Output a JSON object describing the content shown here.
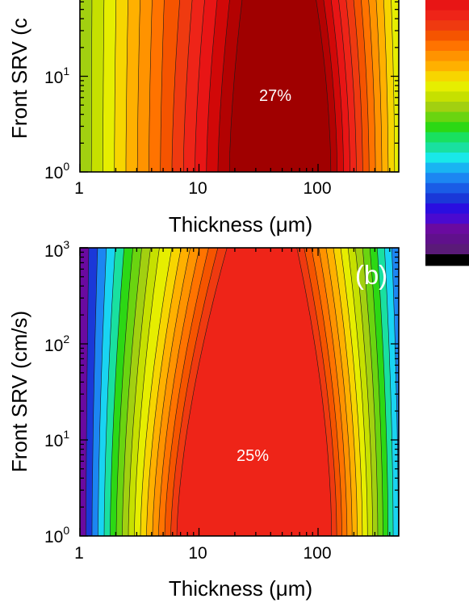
{
  "chart_data": [
    {
      "type": "heatmap",
      "panel_label": "",
      "title": "",
      "xlabel": "Thickness (μm)",
      "ylabel": "Front SRV (c",
      "x_scale": "log",
      "y_scale": "log",
      "xlim": [
        1,
        450
      ],
      "ylim_visible": [
        1,
        250
      ],
      "x_ticks": [
        {
          "value": 1,
          "label": "1"
        },
        {
          "value": 10,
          "label": "10"
        },
        {
          "value": 100,
          "label": "100"
        }
      ],
      "y_ticks": [
        {
          "value": 1,
          "base": "10",
          "exp": "0"
        },
        {
          "value": 10,
          "base": "10",
          "exp": "1"
        }
      ],
      "annotations": [
        {
          "text": "27%",
          "x": 40,
          "y": 12
        }
      ],
      "peak_efficiency_percent": 27,
      "contour_shape": {
        "x_left_at_bottom": 18,
        "x_left_at_top": 27,
        "x_right_at_bottom": 128,
        "x_right_at_top": 95
      },
      "colors": [
        "#a2d010",
        "#c6e000",
        "#e6ee00",
        "#f7d500",
        "#ffb000",
        "#ff9300",
        "#ff7300",
        "#f55400",
        "#ef3a10",
        "#ee2418",
        "#e81515",
        "#d10808",
        "#b30202",
        "#a00000"
      ]
    },
    {
      "type": "heatmap",
      "panel_label": "(b)",
      "title": "",
      "xlabel": "Thickness (μm)",
      "ylabel": "Front SRV (cm/s)",
      "x_scale": "log",
      "y_scale": "log",
      "xlim": [
        1,
        450
      ],
      "ylim": [
        1,
        1000
      ],
      "x_ticks": [
        {
          "value": 1,
          "label": "1"
        },
        {
          "value": 10,
          "label": "10"
        },
        {
          "value": 100,
          "label": "100"
        }
      ],
      "y_ticks": [
        {
          "value": 1,
          "base": "10",
          "exp": "0"
        },
        {
          "value": 10,
          "base": "10",
          "exp": "1"
        },
        {
          "value": 100,
          "base": "10",
          "exp": "2"
        },
        {
          "value": 1000,
          "base": "10",
          "exp": "3"
        }
      ],
      "annotations": [
        {
          "text": "25%",
          "x": 22,
          "y": 9
        }
      ],
      "peak_efficiency_percent": 25,
      "contour_shape": {
        "x_left_at_bottom": 6.5,
        "x_left_at_top": 20,
        "x_right_at_bottom": 130,
        "x_right_at_top": 65
      },
      "colors": [
        "#6a0aa0",
        "#1a38d8",
        "#1c86f2",
        "#19d4f2",
        "#19e0a0",
        "#2cd814",
        "#6ad410",
        "#a2d010",
        "#c6e000",
        "#e6ee00",
        "#f7d500",
        "#ffb000",
        "#ff9300",
        "#ff7300",
        "#f55400",
        "#ef3a10",
        "#ee2418"
      ]
    }
  ],
  "colorbar": {
    "colors": [
      "#e81515",
      "#ee2418",
      "#ef3a10",
      "#f55400",
      "#ff7300",
      "#ff9300",
      "#ffb000",
      "#f7d500",
      "#e6ee00",
      "#c6e000",
      "#a2d010",
      "#6ad410",
      "#2cd814",
      "#19e060",
      "#19e0a0",
      "#19e8e8",
      "#19b4f2",
      "#1c86f2",
      "#1a5ce6",
      "#1a38d8",
      "#2a0ee0",
      "#4a0ad0",
      "#6a0aa0",
      "#60108c",
      "#5a1a78",
      "#000000"
    ]
  }
}
